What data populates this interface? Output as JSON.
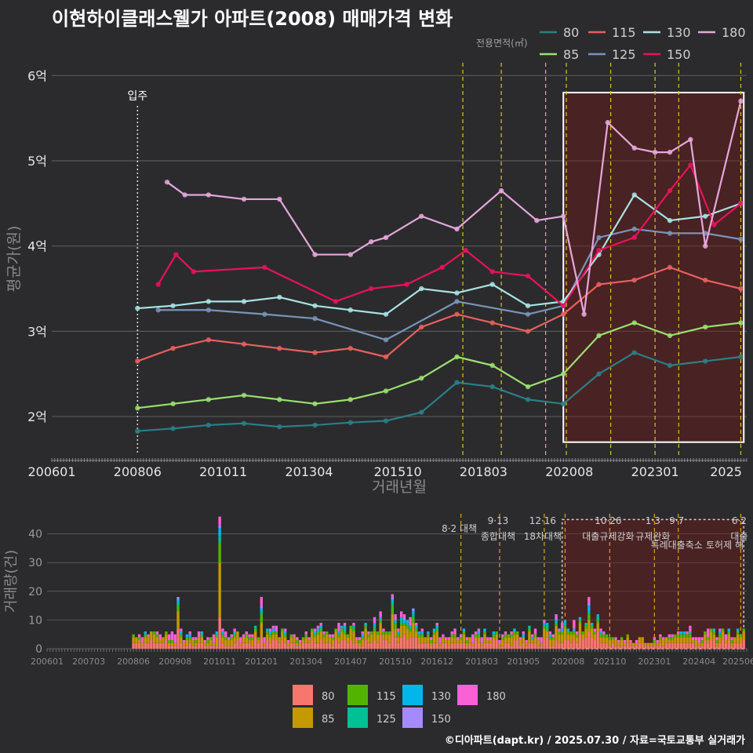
{
  "title": "이현하이클래스웰가 아파트(2008) 매매가격 변화",
  "footer": "©디아파트(dapt.kr) / 2025.07.30 / 자료=국토교통부 실거래가",
  "colors": {
    "80": "#2a7f86",
    "85": "#9be070",
    "115": "#e8605e",
    "125": "#7a93b8",
    "130": "#a9e3e3",
    "150": "#e8125c",
    "180": "#e6a7dc"
  },
  "bar_colors": {
    "80": "#f8766d",
    "85": "#c49a00",
    "115": "#53b400",
    "125": "#00c094",
    "130": "#00b6eb",
    "150": "#a58aff",
    "180": "#fb61d7"
  },
  "chart_data": [
    {
      "type": "line",
      "title": "이현하이클래스웰가 아파트(2008) 매매가격 변화",
      "xlabel": "거래년월",
      "ylabel": "평균가(원)",
      "x_ticks": [
        "200601",
        "200806",
        "201011",
        "201304",
        "201510",
        "201803",
        "202008",
        "202301",
        "2025"
      ],
      "y_ticks": [
        "2억",
        "3억",
        "4억",
        "5억",
        "6억"
      ],
      "ylim": [
        1.55,
        6.15
      ],
      "xlim": [
        "2006-01",
        "2025-08"
      ],
      "legend_title": "전용면적(㎡)",
      "legend_position": "top-right",
      "annotation": "입주",
      "policy_dates": [
        "2017-08",
        "2018-09",
        "2019-12",
        "2020-07",
        "2021-10",
        "2023-01",
        "2023-09",
        "2025-06"
      ],
      "highlight_range": [
        "2020-06",
        "2025-07"
      ],
      "series": [
        {
          "name": "80",
          "x": [
            "2008-06",
            "2009-06",
            "2010-06",
            "2011-06",
            "2012-06",
            "2013-06",
            "2014-06",
            "2015-06",
            "2016-06",
            "2017-06",
            "2018-06",
            "2019-06",
            "2020-06",
            "2021-06",
            "2022-06",
            "2023-06",
            "2024-06",
            "2025-06"
          ],
          "values": [
            1.83,
            1.86,
            1.9,
            1.92,
            1.88,
            1.9,
            1.93,
            1.95,
            2.05,
            2.4,
            2.35,
            2.2,
            2.15,
            2.5,
            2.75,
            2.6,
            2.65,
            2.7
          ]
        },
        {
          "name": "85",
          "x": [
            "2008-06",
            "2009-06",
            "2010-06",
            "2011-06",
            "2012-06",
            "2013-06",
            "2014-06",
            "2015-06",
            "2016-06",
            "2017-06",
            "2018-06",
            "2019-06",
            "2020-06",
            "2021-06",
            "2022-06",
            "2023-06",
            "2024-06",
            "2025-06"
          ],
          "values": [
            2.1,
            2.15,
            2.2,
            2.25,
            2.2,
            2.15,
            2.2,
            2.3,
            2.45,
            2.7,
            2.6,
            2.35,
            2.5,
            2.95,
            3.1,
            2.95,
            3.05,
            3.1
          ]
        },
        {
          "name": "115",
          "x": [
            "2008-06",
            "2009-06",
            "2010-06",
            "2011-06",
            "2012-06",
            "2013-06",
            "2014-06",
            "2015-06",
            "2016-06",
            "2017-06",
            "2018-06",
            "2019-06",
            "2020-06",
            "2021-06",
            "2022-06",
            "2023-06",
            "2024-06",
            "2025-06"
          ],
          "values": [
            2.65,
            2.8,
            2.9,
            2.85,
            2.8,
            2.75,
            2.8,
            2.7,
            3.05,
            3.2,
            3.1,
            3.0,
            3.2,
            3.55,
            3.6,
            3.75,
            3.6,
            3.5
          ]
        },
        {
          "name": "125",
          "x": [
            "2009-01",
            "2010-06",
            "2012-01",
            "2013-06",
            "2015-06",
            "2017-06",
            "2019-06",
            "2020-06",
            "2021-06",
            "2022-06",
            "2023-06",
            "2024-06",
            "2025-06"
          ],
          "values": [
            3.25,
            3.25,
            3.2,
            3.15,
            2.9,
            3.35,
            3.2,
            3.3,
            4.1,
            4.2,
            4.15,
            4.15,
            4.08
          ]
        },
        {
          "name": "130",
          "x": [
            "2008-06",
            "2009-06",
            "2010-06",
            "2011-06",
            "2012-06",
            "2013-06",
            "2014-06",
            "2015-06",
            "2016-06",
            "2017-06",
            "2018-06",
            "2019-06",
            "2020-06",
            "2021-06",
            "2022-06",
            "2023-06",
            "2024-06",
            "2025-06"
          ],
          "values": [
            3.27,
            3.3,
            3.35,
            3.35,
            3.4,
            3.3,
            3.25,
            3.2,
            3.5,
            3.45,
            3.55,
            3.3,
            3.35,
            3.9,
            4.6,
            4.3,
            4.35,
            4.5
          ]
        },
        {
          "name": "150",
          "x": [
            "2009-01",
            "2009-07",
            "2010-01",
            "2012-01",
            "2014-01",
            "2015-01",
            "2016-01",
            "2017-01",
            "2017-09",
            "2018-06",
            "2019-06",
            "2020-06",
            "2021-06",
            "2022-06",
            "2023-06",
            "2024-01",
            "2024-09",
            "2025-06"
          ],
          "values": [
            3.55,
            3.9,
            3.7,
            3.75,
            3.35,
            3.5,
            3.55,
            3.75,
            3.95,
            3.7,
            3.65,
            3.3,
            3.95,
            4.1,
            4.65,
            4.95,
            4.25,
            4.5
          ]
        },
        {
          "name": "180",
          "x": [
            "2009-04",
            "2009-10",
            "2010-06",
            "2011-06",
            "2012-06",
            "2013-06",
            "2014-06",
            "2015-01",
            "2015-06",
            "2016-06",
            "2017-06",
            "2018-09",
            "2019-09",
            "2020-06",
            "2021-01",
            "2021-09",
            "2022-06",
            "2023-01",
            "2023-06",
            "2024-01",
            "2024-06",
            "2025-06"
          ],
          "values": [
            4.75,
            4.6,
            4.6,
            4.55,
            4.55,
            3.9,
            3.9,
            4.05,
            4.1,
            4.35,
            4.2,
            4.65,
            4.3,
            4.35,
            3.2,
            5.45,
            5.15,
            5.1,
            5.1,
            5.25,
            4.0,
            5.7
          ]
        }
      ]
    },
    {
      "type": "bar",
      "ylabel": "거래량(건)",
      "y_ticks": [
        "0",
        "10",
        "20",
        "30",
        "40"
      ],
      "ylim": [
        0,
        47
      ],
      "x_ticks": [
        "200601",
        "200703",
        "200806",
        "200908",
        "201011",
        "201201",
        "201304",
        "201407",
        "201510",
        "201612",
        "201803",
        "201905",
        "202008",
        "202110",
        "202301",
        "202404",
        "202506"
      ],
      "stack_order": [
        "80",
        "85",
        "115",
        "125",
        "130",
        "150",
        "180"
      ],
      "peaks": [
        {
          "x": "2010-11",
          "value": 46
        },
        {
          "x": "2009-09",
          "value": 18
        },
        {
          "x": "2012-01",
          "value": 18
        },
        {
          "x": "2015-09",
          "value": 19
        },
        {
          "x": "2021-03",
          "value": 18
        }
      ],
      "policy_labels": [
        {
          "date": "2017-08",
          "line1": "8·2 대책",
          "line2": ""
        },
        {
          "date": "2018-09",
          "line1": "9·13",
          "line2": "종합대책"
        },
        {
          "date": "2019-12",
          "line1": "12·16",
          "line2": "18차대책"
        },
        {
          "date": "2021-10",
          "line1": "10·26",
          "line2": "대출규제강화"
        },
        {
          "date": "2023-01",
          "line1": "1·3",
          "line2": "규제완화"
        },
        {
          "date": "2023-09",
          "line1": "9·7",
          "line2": "특례대출축소"
        },
        {
          "date": "2025-06",
          "line1": "6·2",
          "line2": "대출"
        }
      ],
      "extra_label": "토허제 해",
      "legend_position": "bottom",
      "legend_items": [
        "80",
        "115",
        "130",
        "180",
        "85",
        "125",
        "150"
      ]
    }
  ]
}
